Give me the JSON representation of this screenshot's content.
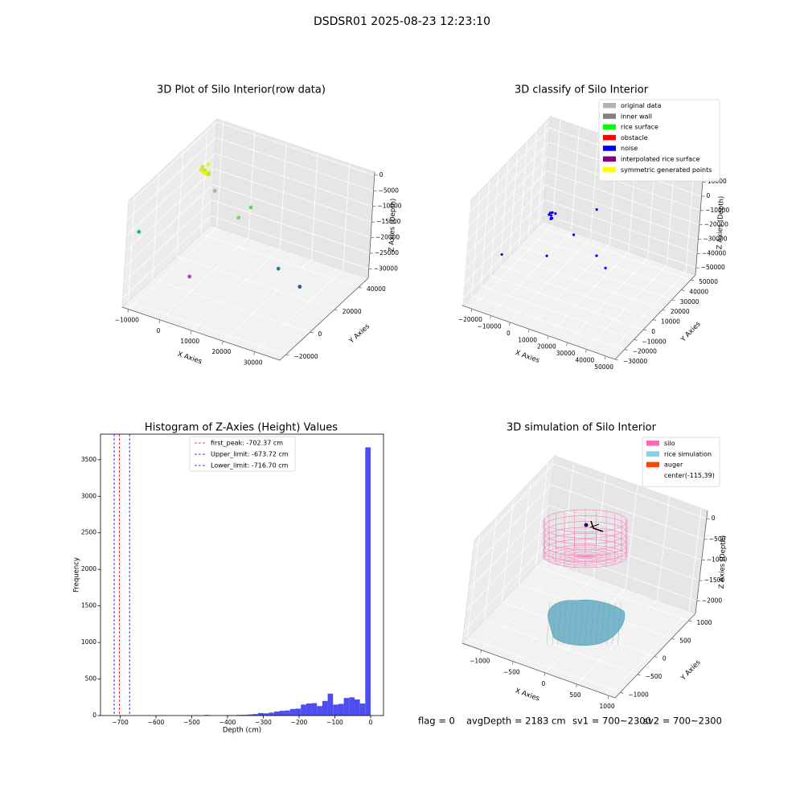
{
  "title": "DSDSR01 2025-08-23 12:23:10",
  "footer": [
    "flag = 0",
    "avgDepth = 2183 cm",
    "sv1 = 700~2300",
    "sv2 = 700~2300"
  ],
  "chart_data": [
    {
      "type": "scatter3d",
      "title": "3D Plot of Silo Interior(row data)",
      "xlabel": "X Axies",
      "ylabel": "Y Axies",
      "zlabel": "Z Axies (Depth)",
      "xlim": [
        -12000,
        38000
      ],
      "ylim": [
        -25000,
        48000
      ],
      "zlim": [
        -33000,
        1000
      ],
      "xticks": [
        {
          "value": -10000,
          "label": "−10000"
        },
        0,
        10000,
        20000,
        30000
      ],
      "yticks": [
        {
          "value": -20000,
          "label": "−20000"
        },
        0,
        20000,
        40000
      ],
      "zticks": [
        0,
        {
          "value": -5000,
          "label": "−5000"
        },
        {
          "value": -10000,
          "label": "−10000"
        },
        {
          "value": -15000,
          "label": "−15000"
        },
        {
          "value": -20000,
          "label": "−20000"
        },
        {
          "value": -25000,
          "label": "−25000"
        },
        {
          "value": -30000,
          "label": "−30000"
        }
      ],
      "series": [
        {
          "x": [
            -5000,
            -6000,
            -4000,
            -5500,
            -4500,
            -3500,
            -6500,
            -5000,
            -4000,
            -5800,
            -10000,
            3000,
            -3500,
            8000,
            9500,
            28000,
            35000
          ],
          "y": [
            20000,
            21000,
            19000,
            22000,
            18000,
            20000,
            21500,
            23000,
            21000,
            19500,
            -20000,
            -10000,
            26000,
            26000,
            11500,
            -3000,
            -3000
          ],
          "z": [
            -3000,
            -2500,
            -3500,
            -4000,
            -2800,
            -3200,
            -3600,
            -2200,
            -4300,
            -3000,
            -10000,
            -23500,
            -11200,
            -12600,
            -10200,
            -15000,
            -18400
          ],
          "colors": [
            "#e0ec2a",
            "#d2e62c",
            "#eef21e",
            "#c6e030",
            "#e8ef22",
            "#d8ea28",
            "#cfe42e",
            "#f0f41c",
            "#c2de34",
            "#dceb26",
            "#2ab07f",
            "#a64ca6",
            "#b0b0b0",
            "#5ed07a",
            "#7ad35e",
            "#2e7d96",
            "#2f5d8a"
          ]
        }
      ]
    },
    {
      "type": "scatter3d",
      "title": "3D classify of Silo Interior",
      "legend": "upper right",
      "xlabel": "X Axies",
      "ylabel": "Y Axies",
      "zlabel": "Z Axies (Depth)",
      "xlim": [
        -25000,
        55000
      ],
      "ylim": [
        -30000,
        55000
      ],
      "zlim": [
        -55000,
        18000
      ],
      "xticks": [
        {
          "value": -20000,
          "label": "−20000"
        },
        {
          "value": -10000,
          "label": "−10000"
        },
        0,
        10000,
        20000,
        30000,
        40000,
        50000
      ],
      "yticks": [
        {
          "value": -30000,
          "label": "−30000"
        },
        {
          "value": -20000,
          "label": "−20000"
        },
        {
          "value": -10000,
          "label": "−10000"
        },
        0,
        10000,
        20000,
        30000,
        40000,
        50000
      ],
      "zticks": [
        10000,
        0,
        {
          "value": -10000,
          "label": "−10000"
        },
        {
          "value": -20000,
          "label": "−20000"
        },
        {
          "value": -30000,
          "label": "−30000"
        },
        {
          "value": -40000,
          "label": "−40000"
        },
        {
          "value": -50000,
          "label": "−50000"
        }
      ],
      "series": [
        {
          "name": "original data",
          "color": "#b3b3b3",
          "x": [],
          "y": [],
          "z": []
        },
        {
          "name": "inner wall",
          "color": "#808080",
          "x": [],
          "y": [],
          "z": []
        },
        {
          "name": "rice surface",
          "color": "#00ff00",
          "x": [],
          "y": [],
          "z": []
        },
        {
          "name": "obstacle",
          "color": "#ff0000",
          "x": [],
          "y": [],
          "z": []
        },
        {
          "name": "noise",
          "color": "#0000ff",
          "x": [
            -5800,
            -6800,
            -4800,
            -6200,
            -5200,
            -7200,
            -4400,
            -5600,
            -10600,
            8600,
            10200,
            30200,
            39000,
            13400
          ],
          "y": [
            21000,
            22000,
            20000,
            23000,
            19500,
            21500,
            22500,
            20500,
            -21500,
            -13000,
            12500,
            -4500,
            -13000,
            29500
          ],
          "z": [
            -18500,
            -17800,
            -19200,
            -18000,
            -19600,
            -18900,
            -17500,
            -20000,
            -18500,
            -16300,
            -18500,
            -12000,
            -10500,
            -11200
          ]
        },
        {
          "name": "interpolated rice surface",
          "color": "#800080",
          "x": [],
          "y": [],
          "z": []
        },
        {
          "name": "symmetric generated points",
          "color": "#ffff00",
          "x": [],
          "y": [],
          "z": []
        }
      ]
    },
    {
      "type": "histogram",
      "title": "Histogram of Z-Axies (Height) Values",
      "xlabel": "Depth (cm)",
      "ylabel": "Frequency",
      "color": "#4d4df2",
      "legend": "upper center",
      "bins": [
        -720,
        -705,
        -690,
        -675,
        -660,
        -645,
        -630,
        -615,
        -600,
        -585,
        -570,
        -555,
        -540,
        -525,
        -510,
        -495,
        -480,
        -465,
        -450,
        -435,
        -420,
        -405,
        -390,
        -375,
        -360,
        -345,
        -330,
        -315,
        -300,
        -285,
        -270,
        -255,
        -240,
        -225,
        -210,
        -195,
        -180,
        -165,
        -150,
        -135,
        -120,
        -105,
        -90,
        -75,
        -60,
        -45,
        -30,
        -15,
        0
      ],
      "counts": [
        0,
        0,
        0,
        0,
        0,
        0,
        0,
        0,
        0,
        0,
        0,
        0,
        0,
        0,
        0,
        0,
        0,
        8,
        0,
        0,
        0,
        5,
        5,
        8,
        10,
        15,
        20,
        35,
        30,
        40,
        55,
        65,
        70,
        90,
        95,
        150,
        165,
        170,
        130,
        200,
        300,
        150,
        160,
        240,
        250,
        220,
        165,
        3670
      ],
      "xlim": [
        -755,
        36
      ],
      "ylim": [
        0,
        3850
      ],
      "xticks": [
        {
          "value": -700,
          "label": "−700"
        },
        {
          "value": -600,
          "label": "−600"
        },
        {
          "value": -500,
          "label": "−500"
        },
        {
          "value": -400,
          "label": "−400"
        },
        {
          "value": -300,
          "label": "−300"
        },
        {
          "value": -200,
          "label": "−200"
        },
        {
          "value": -100,
          "label": "−100"
        },
        0
      ],
      "yticks": [
        0,
        500,
        1000,
        1500,
        2000,
        2500,
        3000,
        3500
      ],
      "vlines": [
        {
          "name": "first_peak: -702.37 cm",
          "value": -702.37,
          "color": "#ff0000"
        },
        {
          "name": "Upper_limit: -673.72 cm",
          "value": -673.72,
          "color": "#0000ff"
        },
        {
          "name": "Lower_limit: -716.70 cm",
          "value": -716.7,
          "color": "#0000ff"
        }
      ]
    },
    {
      "type": "scatter3d",
      "title": "3D simulation of Silo Interior",
      "legend": "upper right",
      "xlabel": "X Axies",
      "ylabel": "Y Axies",
      "zlabel": "Z Axies (Depth)",
      "xlim": [
        -1300,
        1100
      ],
      "ylim": [
        -1150,
        1200
      ],
      "zlim": [
        -2300,
        200
      ],
      "xticks": [
        {
          "value": -1000,
          "label": "−1000"
        },
        {
          "value": -500,
          "label": "−500"
        },
        0,
        500,
        1000
      ],
      "yticks": [
        {
          "value": -1000,
          "label": "−1000"
        },
        {
          "value": -500,
          "label": "−500"
        },
        0,
        500,
        1000
      ],
      "zticks": [
        0,
        {
          "value": -500,
          "label": "−500"
        },
        {
          "value": -1000,
          "label": "−1000"
        },
        {
          "value": -1500,
          "label": "−1500"
        },
        {
          "value": -2000,
          "label": "−2000"
        }
      ],
      "series": [
        {
          "name": "silo",
          "color": "#ff69b4"
        },
        {
          "name": "rice simulation",
          "color": "#87ceeb"
        },
        {
          "name": "auger",
          "color": "#ff4500"
        },
        {
          "name": "center(-115,39)"
        }
      ]
    }
  ]
}
